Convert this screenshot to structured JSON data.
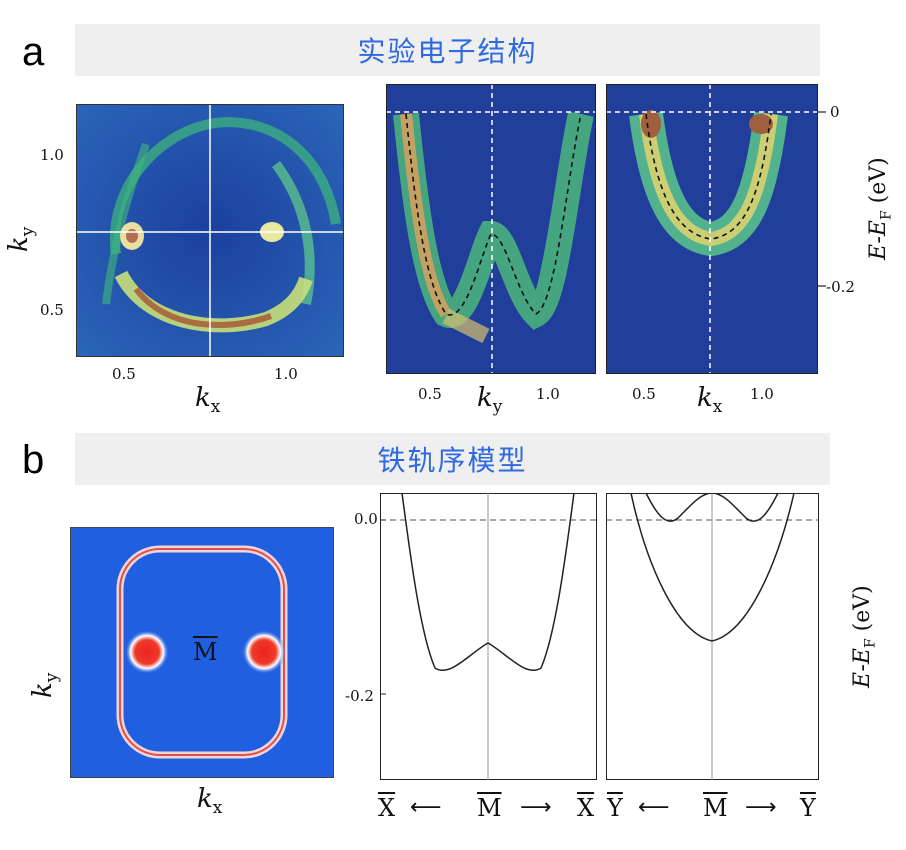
{
  "panel_a": {
    "letter": "a",
    "banner": "实验电子结构",
    "fermi_map": {
      "xticks": [
        "0.5",
        "1.0"
      ],
      "yticks": [
        "1.0",
        "0.5"
      ],
      "xlabel": "k",
      "xlabel_sub": "x",
      "ylabel": "k",
      "ylabel_sub": "y"
    },
    "cut_ky": {
      "xticks": [
        "0.5",
        "1.0"
      ],
      "xlabel": "k",
      "xlabel_sub": "y"
    },
    "cut_kx": {
      "xticks": [
        "0.5",
        "1.0"
      ],
      "xlabel": "k",
      "xlabel_sub": "x"
    },
    "energy_ticks": [
      "0",
      "-0.2"
    ],
    "energy_label": "E-E",
    "energy_label_sub": "F",
    "energy_unit": "(eV)"
  },
  "panel_b": {
    "letter": "b",
    "banner": "铁轨序模型",
    "model_map": {
      "point_label": "M",
      "xlabel": "k",
      "xlabel_sub": "x",
      "ylabel": "k",
      "ylabel_sub": "y"
    },
    "energy_ticks": [
      "0.0",
      "-0.2"
    ],
    "left_cut": {
      "start": "X",
      "mid": "M",
      "end": "X"
    },
    "right_cut": {
      "start": "Y",
      "mid": "M",
      "end": "Y"
    },
    "energy_label": "E-E",
    "energy_label_sub": "F",
    "energy_unit": "(eV)"
  },
  "colors": {
    "banner_text": "#2f6ae0",
    "banner_bg": "#efefef",
    "map_bg": "#1f5fe0",
    "ring": "#e05050"
  }
}
